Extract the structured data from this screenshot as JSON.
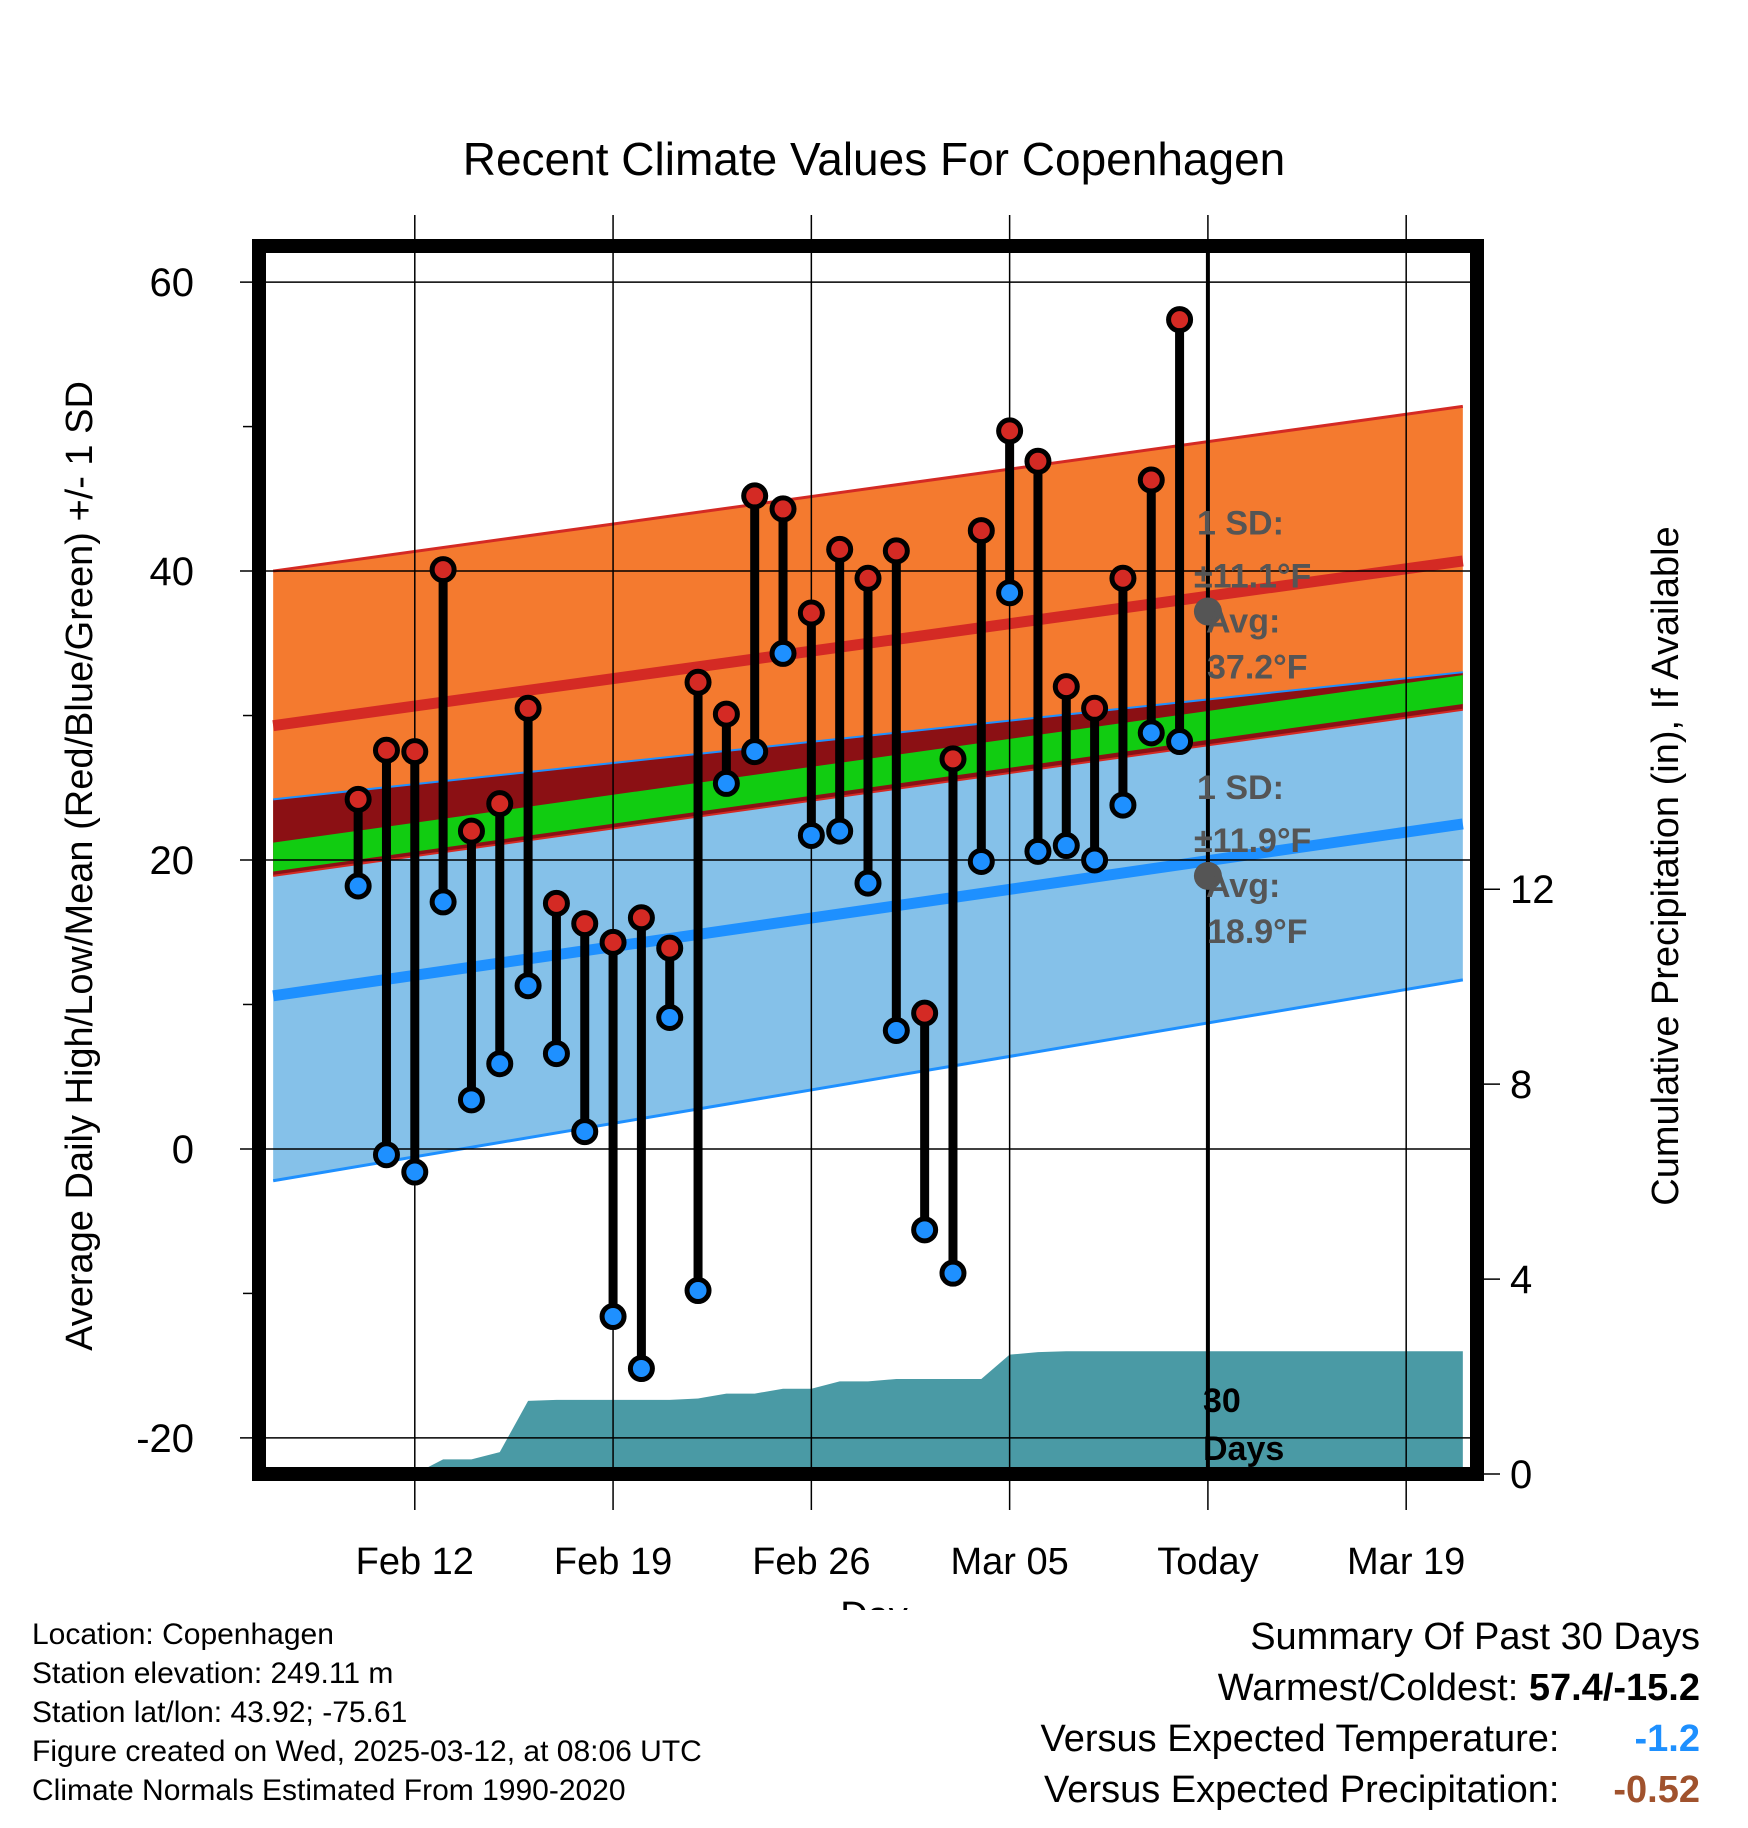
{
  "chart_data": {
    "type": "line",
    "title": "Recent Climate Values For Copenhagen",
    "xlabel": "Day",
    "ylabel": "Average Daily High/Low/Mean (Red/Blue/Green) +/- 1 SD",
    "y2label": "Cumulative Precipitation (in), If Available",
    "ylim": [
      -22.5,
      62.5
    ],
    "y2lim": [
      0,
      25.2
    ],
    "xlim_days": [
      -33.5,
      9.5
    ],
    "yticks": [
      "60",
      "40",
      "20",
      "0",
      "-20"
    ],
    "y2ticks": [
      "12",
      "8",
      "4",
      "0"
    ],
    "xticks": [
      {
        "day": -28,
        "label": "Feb 12"
      },
      {
        "day": -21,
        "label": "Feb 19"
      },
      {
        "day": -14,
        "label": "Feb 26"
      },
      {
        "day": -7,
        "label": "Mar 05"
      },
      {
        "day": 0,
        "label": "Today"
      },
      {
        "day": 7,
        "label": "Mar 19"
      }
    ],
    "daily": [
      {
        "day": -30,
        "high": 24.2,
        "low": 18.2
      },
      {
        "day": -29,
        "high": 27.6,
        "low": -0.4
      },
      {
        "day": -28,
        "high": 27.5,
        "low": -1.6
      },
      {
        "day": -27,
        "high": 40.1,
        "low": 17.1
      },
      {
        "day": -26,
        "high": 22.0,
        "low": 3.4
      },
      {
        "day": -25,
        "high": 23.9,
        "low": 5.9
      },
      {
        "day": -24,
        "high": 30.5,
        "low": 11.3
      },
      {
        "day": -23,
        "high": 17.0,
        "low": 6.6
      },
      {
        "day": -22,
        "high": 15.6,
        "low": 1.2
      },
      {
        "day": -21,
        "high": 14.3,
        "low": -11.6
      },
      {
        "day": -20,
        "high": 16.0,
        "low": -15.2
      },
      {
        "day": -19,
        "high": 13.9,
        "low": 9.1
      },
      {
        "day": -18,
        "high": 32.3,
        "low": -9.8
      },
      {
        "day": -17,
        "high": 30.1,
        "low": 25.3
      },
      {
        "day": -16,
        "high": 45.2,
        "low": 27.5
      },
      {
        "day": -15,
        "high": 44.3,
        "low": 34.3
      },
      {
        "day": -14,
        "high": 37.1,
        "low": 21.7
      },
      {
        "day": -13,
        "high": 41.5,
        "low": 22.0
      },
      {
        "day": -12,
        "high": 39.5,
        "low": 18.4
      },
      {
        "day": -11,
        "high": 41.4,
        "low": 8.2
      },
      {
        "day": -10,
        "high": 9.4,
        "low": -5.6
      },
      {
        "day": -9,
        "high": 27.0,
        "low": -8.6
      },
      {
        "day": -8,
        "high": 42.8,
        "low": 19.9
      },
      {
        "day": -7,
        "high": 49.7,
        "low": 38.5
      },
      {
        "day": -6,
        "high": 47.6,
        "low": 20.6
      },
      {
        "day": -5,
        "high": 32.0,
        "low": 21.0
      },
      {
        "day": -4,
        "high": 30.5,
        "low": 20.0
      },
      {
        "day": -3,
        "high": 39.5,
        "low": 23.8
      },
      {
        "day": -2,
        "high": 46.3,
        "low": 28.8
      },
      {
        "day": -1,
        "high": 57.4,
        "low": 28.2
      }
    ],
    "normals": {
      "days": [
        -33,
        9
      ],
      "high_mean": [
        29.3,
        40.7
      ],
      "high_sd_upper": [
        40.0,
        51.4
      ],
      "high_sd_lower": [
        18.9,
        30.4
      ],
      "mean_line": [
        20.2,
        31.8
      ],
      "low_mean": [
        10.6,
        22.5
      ],
      "low_sd_upper": [
        24.2,
        33.0
      ],
      "low_sd_lower": [
        -2.2,
        11.7
      ]
    },
    "precip_cumulative": [
      {
        "day": -33,
        "value": 0.0
      },
      {
        "day": -28,
        "value": 0.0
      },
      {
        "day": -27,
        "value": 0.3
      },
      {
        "day": -26,
        "value": 0.3
      },
      {
        "day": -25,
        "value": 0.45
      },
      {
        "day": -24,
        "value": 1.5
      },
      {
        "day": -23,
        "value": 1.52
      },
      {
        "day": -19,
        "value": 1.52
      },
      {
        "day": -18,
        "value": 1.55
      },
      {
        "day": -17,
        "value": 1.65
      },
      {
        "day": -16,
        "value": 1.65
      },
      {
        "day": -15,
        "value": 1.75
      },
      {
        "day": -14,
        "value": 1.75
      },
      {
        "day": -13,
        "value": 1.9
      },
      {
        "day": -12,
        "value": 1.9
      },
      {
        "day": -11,
        "value": 1.95
      },
      {
        "day": -8,
        "value": 1.95
      },
      {
        "day": -7,
        "value": 2.45
      },
      {
        "day": -6,
        "value": 2.5
      },
      {
        "day": -5,
        "value": 2.52
      },
      {
        "day": 9,
        "value": 2.52
      }
    ],
    "annotations": {
      "high_sd": "1 SD:",
      "high_sd_val": "±11.1°F",
      "high_avg": "Avg:",
      "high_avg_val": "37.2°F",
      "high_avg_value": 37.2,
      "low_sd": "1 SD:",
      "low_sd_val": "±11.9°F",
      "low_avg": "Avg:",
      "low_avg_val": "18.9°F",
      "low_avg_value": 18.9,
      "days_label_1": "30",
      "days_label_2": "Days"
    },
    "colors": {
      "high_band": "#f47a2f",
      "high_line": "#d42a24",
      "mean_band": "#8b1014",
      "mean_line": "#11cc11",
      "low_band": "#85c1e9",
      "low_line": "#1e90ff",
      "precip": "#4a9aa5",
      "high_marker": "#d42a24",
      "low_marker": "#1e90ff",
      "annotation": "#555555"
    }
  },
  "footer": {
    "location": "Location: Copenhagen",
    "elevation": "Station elevation: 249.11 m",
    "latlon": "Station lat/lon: 43.92; -75.61",
    "created": "Figure created on Wed, 2025-03-12, at 08:06 UTC",
    "normals": "Climate Normals Estimated From 1990-2020"
  },
  "summary": {
    "title": "Summary Of Past 30 Days",
    "warmest_label": "Warmest/Coldest:",
    "warmest_value": "57.4/-15.2",
    "temp_label": "Versus Expected Temperature:",
    "temp_value": "-1.2",
    "temp_color": "#1e90ff",
    "precip_label": "Versus Expected Precipitation:",
    "precip_value": "-0.52",
    "precip_color": "#a0522d"
  }
}
